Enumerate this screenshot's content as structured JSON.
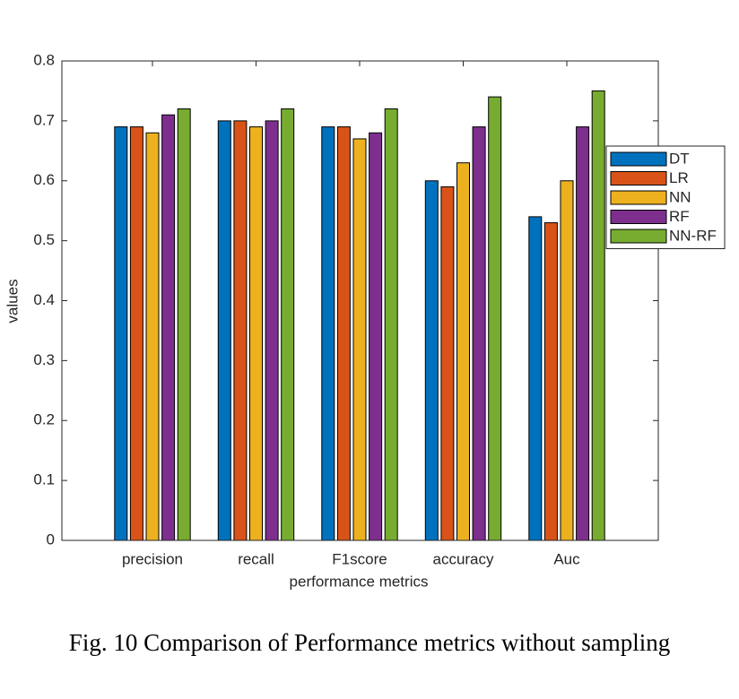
{
  "chart_data": {
    "type": "bar",
    "categories": [
      "precision",
      "recall",
      "F1score",
      "accuracy",
      "Auc"
    ],
    "series": [
      {
        "name": "DT",
        "color": "#0072BD",
        "values": [
          0.69,
          0.7,
          0.69,
          0.6,
          0.54
        ]
      },
      {
        "name": "LR",
        "color": "#D95319",
        "values": [
          0.69,
          0.7,
          0.69,
          0.59,
          0.53
        ]
      },
      {
        "name": "NN",
        "color": "#EDB120",
        "values": [
          0.68,
          0.69,
          0.67,
          0.63,
          0.6
        ]
      },
      {
        "name": "RF",
        "color": "#7E2F8E",
        "values": [
          0.71,
          0.7,
          0.68,
          0.69,
          0.69
        ]
      },
      {
        "name": "NN-RF",
        "color": "#77AC30",
        "values": [
          0.72,
          0.72,
          0.72,
          0.74,
          0.75
        ]
      }
    ],
    "xlabel": "performance metrics",
    "ylabel": "values",
    "ylim": [
      0,
      0.8
    ],
    "yticks": [
      0,
      0.1,
      0.2,
      0.3,
      0.4,
      0.5,
      0.6,
      0.7,
      0.8
    ],
    "grid": false,
    "legend": "right"
  },
  "caption": "Fig. 10 Comparison of Performance metrics without sampling"
}
